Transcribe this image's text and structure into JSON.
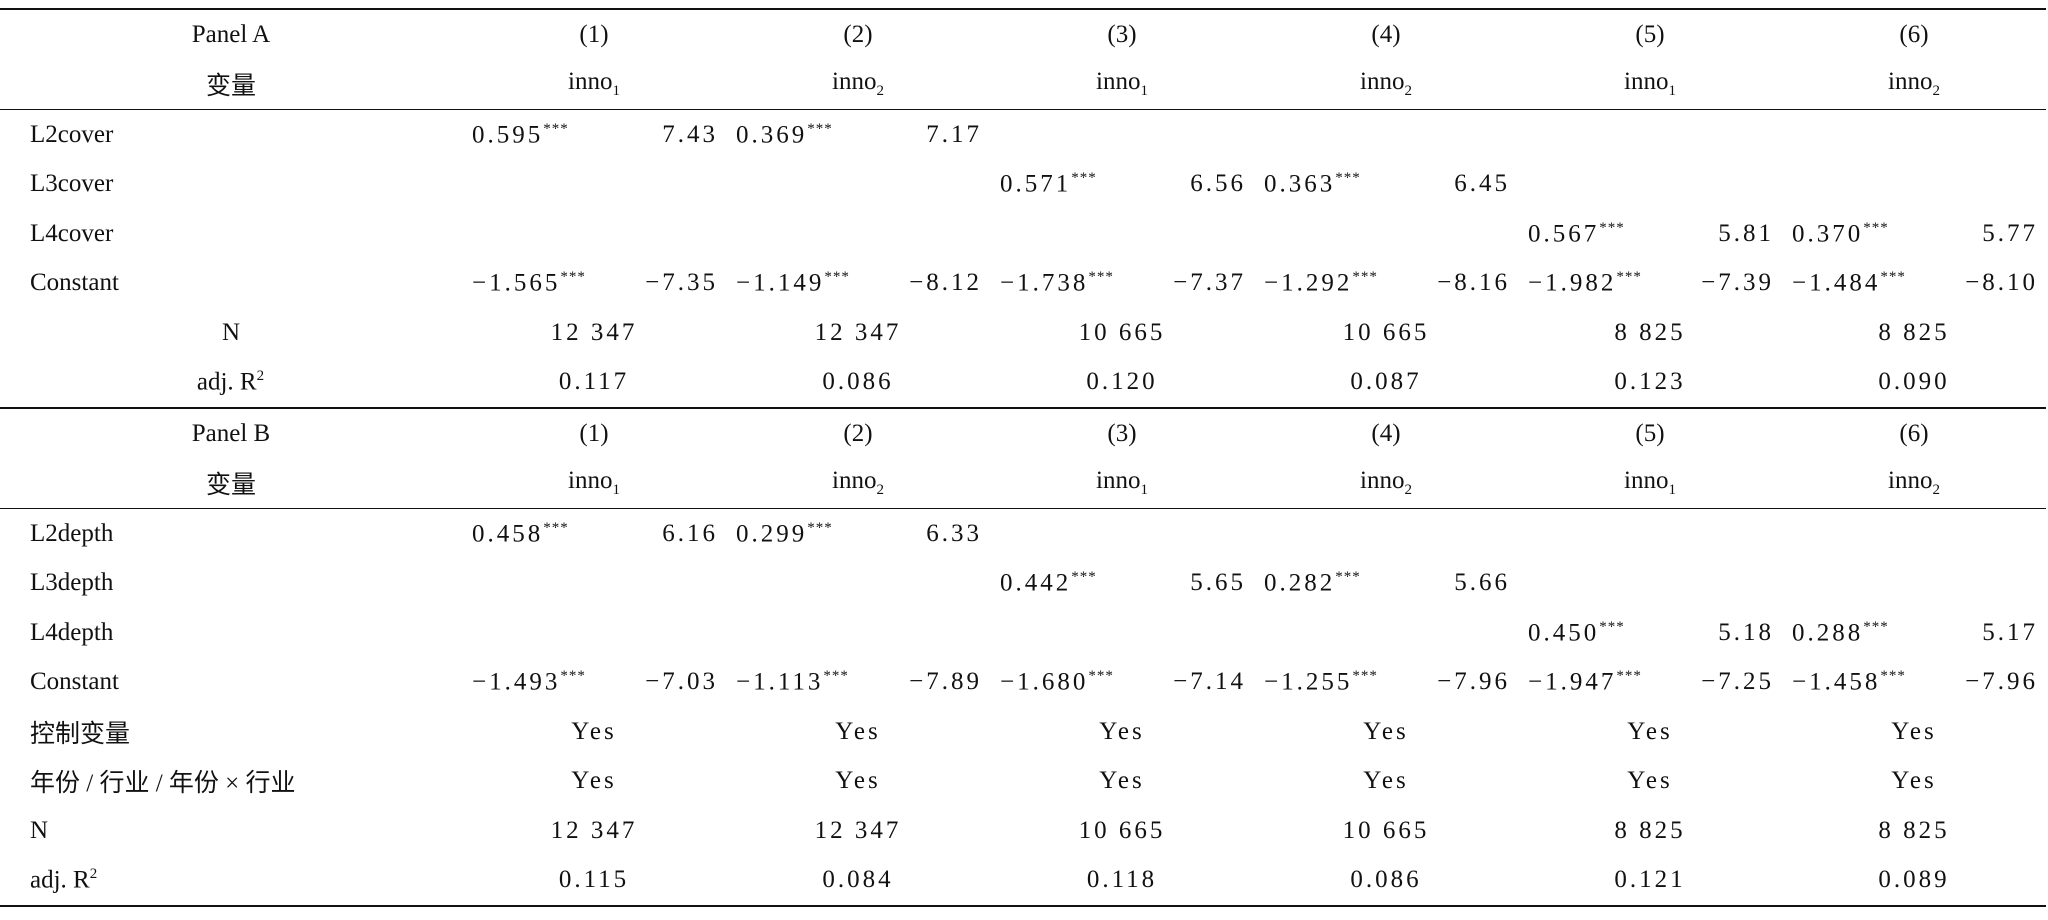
{
  "panels": [
    {
      "header": [
        [
          "Panel A",
          "(1)",
          "(2)",
          "(3)",
          "(4)",
          "(5)",
          "(6)"
        ],
        [
          "变量",
          {
            "text": "inno",
            "sub": "1"
          },
          {
            "text": "inno",
            "sub": "2"
          },
          {
            "text": "inno",
            "sub": "1"
          },
          {
            "text": "inno",
            "sub": "2"
          },
          {
            "text": "inno",
            "sub": "1"
          },
          {
            "text": "inno",
            "sub": "2"
          }
        ]
      ],
      "rows": [
        {
          "label": "L2cover",
          "cells": [
            {
              "coef": "0.595",
              "stars": "***",
              "t": "7.43"
            },
            {
              "coef": "0.369",
              "stars": "***",
              "t": "7.17"
            },
            null,
            null,
            null,
            null
          ]
        },
        {
          "label": "L3cover",
          "cells": [
            null,
            null,
            {
              "coef": "0.571",
              "stars": "***",
              "t": "6.56"
            },
            {
              "coef": "0.363",
              "stars": "***",
              "t": "6.45"
            },
            null,
            null
          ]
        },
        {
          "label": "L4cover",
          "cells": [
            null,
            null,
            null,
            null,
            {
              "coef": "0.567",
              "stars": "***",
              "t": "5.81"
            },
            {
              "coef": "0.370",
              "stars": "***",
              "t": "5.77"
            }
          ]
        },
        {
          "label": "Constant",
          "cells": [
            {
              "coef": "−1.565",
              "stars": "***",
              "t": "−7.35"
            },
            {
              "coef": "−1.149",
              "stars": "***",
              "t": "−8.12"
            },
            {
              "coef": "−1.738",
              "stars": "***",
              "t": "−7.37"
            },
            {
              "coef": "−1.292",
              "stars": "***",
              "t": "−8.16"
            },
            {
              "coef": "−1.982",
              "stars": "***",
              "t": "−7.39"
            },
            {
              "coef": "−1.484",
              "stars": "***",
              "t": "−8.10"
            }
          ]
        },
        {
          "label": "N",
          "cells": [
            "12 347",
            "12 347",
            "10 665",
            "10 665",
            "8 825",
            "8 825"
          ]
        },
        {
          "label": {
            "text": "adj. R",
            "sup": "2"
          },
          "cells": [
            "0.117",
            "0.086",
            "0.120",
            "0.087",
            "0.123",
            "0.090"
          ]
        }
      ]
    },
    {
      "header": [
        [
          "Panel B",
          "(1)",
          "(2)",
          "(3)",
          "(4)",
          "(5)",
          "(6)"
        ],
        [
          "变量",
          {
            "text": "inno",
            "sub": "1"
          },
          {
            "text": "inno",
            "sub": "2"
          },
          {
            "text": "inno",
            "sub": "1"
          },
          {
            "text": "inno",
            "sub": "2"
          },
          {
            "text": "inno",
            "sub": "1"
          },
          {
            "text": "inno",
            "sub": "2"
          }
        ]
      ],
      "rows": [
        {
          "label": "L2depth",
          "cells": [
            {
              "coef": "0.458",
              "stars": "***",
              "t": "6.16"
            },
            {
              "coef": "0.299",
              "stars": "***",
              "t": "6.33"
            },
            null,
            null,
            null,
            null
          ]
        },
        {
          "label": "L3depth",
          "cells": [
            null,
            null,
            {
              "coef": "0.442",
              "stars": "***",
              "t": "5.65"
            },
            {
              "coef": "0.282",
              "stars": "***",
              "t": "5.66"
            },
            null,
            null
          ]
        },
        {
          "label": "L4depth",
          "cells": [
            null,
            null,
            null,
            null,
            {
              "coef": "0.450",
              "stars": "***",
              "t": "5.18"
            },
            {
              "coef": "0.288",
              "stars": "***",
              "t": "5.17"
            }
          ]
        },
        {
          "label": "Constant",
          "cells": [
            {
              "coef": "−1.493",
              "stars": "***",
              "t": "−7.03"
            },
            {
              "coef": "−1.113",
              "stars": "***",
              "t": "−7.89"
            },
            {
              "coef": "−1.680",
              "stars": "***",
              "t": "−7.14"
            },
            {
              "coef": "−1.255",
              "stars": "***",
              "t": "−7.96"
            },
            {
              "coef": "−1.947",
              "stars": "***",
              "t": "−7.25"
            },
            {
              "coef": "−1.458",
              "stars": "***",
              "t": "−7.96"
            }
          ]
        },
        {
          "label": "控制变量",
          "cells": [
            "Yes",
            "Yes",
            "Yes",
            "Yes",
            "Yes",
            "Yes"
          ]
        },
        {
          "label": "年份 / 行业 / 年份 × 行业",
          "cells": [
            "Yes",
            "Yes",
            "Yes",
            "Yes",
            "Yes",
            "Yes"
          ]
        },
        {
          "label": "N",
          "cells": [
            "12 347",
            "12 347",
            "10 665",
            "10 665",
            "8 825",
            "8 825"
          ]
        },
        {
          "label": {
            "text": "adj. R",
            "sup": "2"
          },
          "cells": [
            "0.115",
            "0.084",
            "0.118",
            "0.086",
            "0.121",
            "0.089"
          ]
        }
      ]
    }
  ]
}
